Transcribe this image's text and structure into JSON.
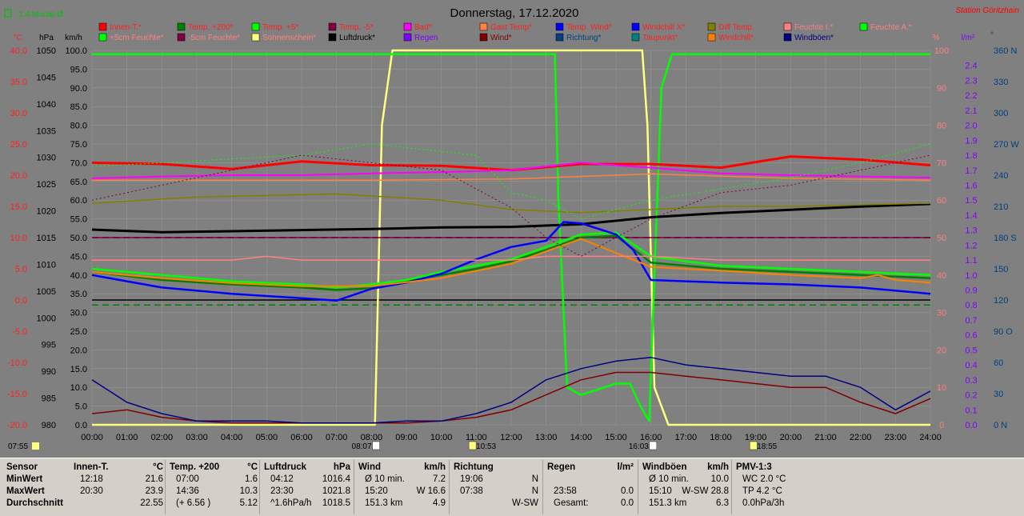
{
  "title": "Donnerstag, 17.12.2020",
  "station": "Station Göritzhain",
  "monat": "-1.4 Monat-Ø",
  "axis_units": {
    "temp": "°C",
    "pressure": "hPa",
    "wind": "km/h",
    "percent": "%",
    "rain": "l/m²",
    "direction": "°"
  },
  "legend": [
    {
      "label": "Innen-T.*",
      "color": "#ff0000",
      "text": "#ff2020"
    },
    {
      "label": "Temp. +200*",
      "color": "#008000",
      "text": "#ff2020"
    },
    {
      "label": "Temp. +5*",
      "color": "#00ff00",
      "text": "#ff2020"
    },
    {
      "label": "Temp. -5*",
      "color": "#800040",
      "text": "#ff2020"
    },
    {
      "label": "Bad*",
      "color": "#ff00ff",
      "text": "#ff2020"
    },
    {
      "label": "Gast Temp*",
      "color": "#ff8040",
      "text": "#ff2020"
    },
    {
      "label": "Temp. Wind*",
      "color": "#0000ff",
      "text": "#ff2020"
    },
    {
      "label": "Windchill X*",
      "color": "#0000ff",
      "text": "#ff2020"
    },
    {
      "label": "Diff Temp.",
      "color": "#808000",
      "text": "#ff2020"
    },
    {
      "label": "Feuchte I.*",
      "color": "#ff8080",
      "text": "#ff8080"
    },
    {
      "label": "Feuchte A.*",
      "color": "#00ff00",
      "text": "#ff8080"
    },
    {
      "label": "+5cm Feuchte*",
      "color": "#00ff00",
      "text": "#ff8080"
    },
    {
      "label": "-5cm Feuchte*",
      "color": "#800040",
      "text": "#ff8080"
    },
    {
      "label": "Sonnenschein*",
      "color": "#ffff80",
      "text": "#ff8080"
    },
    {
      "label": "Luftdruck*",
      "color": "#000000",
      "text": "#000000"
    },
    {
      "label": "Regen",
      "color": "#8000ff",
      "text": "#8000ff"
    },
    {
      "label": "Wind*",
      "color": "#800000",
      "text": "#800000"
    },
    {
      "label": "Richtung*",
      "color": "#004080",
      "text": "#004080"
    },
    {
      "label": "Taupunkt*",
      "color": "#008080",
      "text": "#ff2020"
    },
    {
      "label": "Windchill*",
      "color": "#ff8000",
      "text": "#ff2020"
    },
    {
      "label": "Windböen*",
      "color": "#000080",
      "text": "#000080"
    }
  ],
  "chart_data": {
    "type": "line",
    "x_unit": "hour",
    "x_ticks": [
      "00:00",
      "01:00",
      "02:00",
      "03:00",
      "04:00",
      "05:00",
      "06:00",
      "07:00",
      "08:00",
      "09:00",
      "10:00",
      "11:00",
      "12:00",
      "13:00",
      "14:00",
      "15:00",
      "16:00",
      "17:00",
      "18:00",
      "19:00",
      "20:00",
      "21:00",
      "22:00",
      "23:00",
      "24:00"
    ],
    "xlim": [
      0,
      24
    ],
    "axes": {
      "temp": {
        "ticks": [
          "40.0",
          "35.0",
          "30.0",
          "25.0",
          "20.0",
          "15.0",
          "10.0",
          "5.0",
          "0.0",
          "-5.0",
          "-10.0",
          "-15.0",
          "-20.0"
        ],
        "range": [
          -20,
          40
        ]
      },
      "pressure": {
        "ticks": [
          "1050",
          "1045",
          "1040",
          "1035",
          "1030",
          "1025",
          "1020",
          "1015",
          "1010",
          "1005",
          "1000",
          "995",
          "990",
          "985",
          "980"
        ],
        "range": [
          980,
          1050
        ]
      },
      "wind": {
        "ticks": [
          "100.0",
          "95.0",
          "90.0",
          "85.0",
          "80.0",
          "75.0",
          "70.0",
          "65.0",
          "60.0",
          "55.0",
          "50.0",
          "45.0",
          "40.0",
          "35.0",
          "30.0",
          "25.0",
          "20.0",
          "15.0",
          "10.0",
          "5.0",
          "0.0"
        ],
        "range": [
          0,
          100
        ]
      },
      "percent": {
        "ticks": [
          "100",
          "90",
          "80",
          "70",
          "60",
          "50",
          "40",
          "30",
          "20",
          "10",
          "0"
        ],
        "range": [
          0,
          100
        ]
      },
      "rain": {
        "ticks": [
          "2.4",
          "2.3",
          "2.2",
          "2.1",
          "2.0",
          "1.9",
          "1.8",
          "1.7",
          "1.6",
          "1.5",
          "1.4",
          "1.3",
          "1.2",
          "1.1",
          "1.0",
          "0.9",
          "0.8",
          "0.7",
          "0.6",
          "0.5",
          "0.4",
          "0.3",
          "0.2",
          "0.1",
          "0.0"
        ],
        "range": [
          0,
          2.5
        ]
      },
      "direction": {
        "ticks": [
          "360 N",
          "330",
          "300",
          "270 W",
          "240",
          "210",
          "180 S",
          "150",
          "120",
          "90 O",
          "60",
          "30",
          "0 N"
        ],
        "range": [
          0,
          360
        ]
      }
    },
    "series": [
      {
        "name": "Sonnenschein*",
        "axis": "percent",
        "color": "#ffff80",
        "x": [
          0,
          8.1,
          8.3,
          8.6,
          15.75,
          15.9,
          16.1,
          16.5,
          24
        ],
        "y": [
          0,
          0,
          80,
          100,
          100,
          80,
          10,
          0,
          0
        ]
      },
      {
        "name": "+5cm Feuchte*",
        "axis": "percent",
        "color": "#00ff00",
        "x": [
          0,
          13.25,
          13.35,
          13.6,
          14.0,
          15.0,
          15.4,
          15.7,
          15.95,
          16.1,
          16.3,
          16.6,
          17.0,
          24
        ],
        "y": [
          99,
          99,
          60,
          10,
          8,
          11,
          11,
          5,
          1,
          40,
          90,
          99,
          99,
          99
        ]
      },
      {
        "name": "Innen-T.*",
        "axis": "temp",
        "color": "#ff0000",
        "x": [
          0,
          2,
          4,
          6,
          8,
          10,
          12,
          14,
          16,
          18,
          20,
          22,
          24
        ],
        "y": [
          22.0,
          21.8,
          21.0,
          22.2,
          21.6,
          21.5,
          20.8,
          21.8,
          21.8,
          21.2,
          23.0,
          22.5,
          21.6
        ]
      },
      {
        "name": "Bad*",
        "axis": "temp",
        "color": "#ff00ff",
        "x": [
          0,
          2,
          4,
          6,
          8,
          10,
          12,
          14,
          16,
          18,
          20,
          22,
          24
        ],
        "y": [
          19.5,
          19.8,
          20.0,
          20.0,
          20.3,
          20.5,
          20.8,
          22.0,
          21.2,
          20.3,
          20.0,
          19.8,
          19.6
        ]
      },
      {
        "name": "Gast Temp*",
        "axis": "temp",
        "color": "#ff8040",
        "x": [
          0,
          4,
          8,
          12,
          16,
          20,
          24
        ],
        "y": [
          19.2,
          19.2,
          19.2,
          19.4,
          20.2,
          19.5,
          19.2
        ]
      },
      {
        "name": "Luftdruck*",
        "axis": "pressure",
        "color": "#000000",
        "x": [
          0,
          2,
          4,
          6,
          8,
          10,
          12,
          14,
          16,
          18,
          20,
          22,
          24
        ],
        "y": [
          1016.5,
          1016.0,
          1016.2,
          1016.4,
          1016.6,
          1016.9,
          1017.0,
          1017.5,
          1018.8,
          1019.6,
          1020.2,
          1020.8,
          1021.3
        ]
      },
      {
        "name": "Temp. -5*",
        "axis": "temp",
        "color": "#800040",
        "x": [
          0,
          24
        ],
        "y": [
          10.0,
          10.0
        ]
      },
      {
        "name": "Temp. +200*",
        "axis": "temp",
        "color": "#008000",
        "x": [
          0,
          2,
          4,
          6,
          7,
          8,
          9,
          10,
          11,
          12,
          13,
          14,
          15,
          16,
          17,
          18,
          20,
          22,
          24
        ],
        "y": [
          4.5,
          3.2,
          2.5,
          2.0,
          1.6,
          1.9,
          3.0,
          4.0,
          5.0,
          6.2,
          8.0,
          10.0,
          10.3,
          6.0,
          5.5,
          5.0,
          4.5,
          4.0,
          3.5
        ]
      },
      {
        "name": "Temp. +5*",
        "axis": "temp",
        "color": "#00ff00",
        "x": [
          0,
          2,
          4,
          6,
          7,
          8,
          9,
          10,
          11,
          12,
          13,
          14,
          15,
          16,
          17,
          18,
          20,
          22,
          24
        ],
        "y": [
          5.0,
          4.0,
          3.0,
          2.5,
          2.0,
          2.5,
          3.2,
          4.5,
          5.5,
          6.5,
          8.5,
          10.5,
          10.8,
          7.0,
          6.2,
          5.5,
          5.0,
          4.5,
          4.0
        ]
      },
      {
        "name": "Temp. Wind*",
        "axis": "temp",
        "color": "#0000ff",
        "x": [
          0,
          1,
          2,
          4,
          6,
          7,
          8,
          9,
          10,
          11,
          12,
          13,
          13.5,
          14,
          15,
          15.5,
          16,
          17,
          18,
          20,
          22,
          24
        ],
        "y": [
          4.0,
          3.0,
          2.0,
          1.0,
          0.3,
          -0.1,
          1.8,
          2.8,
          4.2,
          6.5,
          8.5,
          9.5,
          12.5,
          12.3,
          10.5,
          8.0,
          3.2,
          3.0,
          2.8,
          2.5,
          2.0,
          1.0
        ]
      },
      {
        "name": "Windchill*",
        "axis": "temp",
        "color": "#ff8000",
        "x": [
          0,
          2,
          4,
          6,
          8,
          10,
          12,
          14,
          16,
          18,
          20,
          22,
          22.5,
          23,
          24
        ],
        "y": [
          4.5,
          3.5,
          2.7,
          2.2,
          2.2,
          3.5,
          5.8,
          9.8,
          5.3,
          4.7,
          4.0,
          3.5,
          4.0,
          3.2,
          2.8
        ]
      },
      {
        "name": "Diff Temp.",
        "axis": "temp",
        "color": "#808000",
        "x": [
          0,
          3,
          7,
          10,
          12,
          14,
          16,
          18,
          20,
          24
        ],
        "y": [
          15.5,
          16.5,
          17.0,
          16.0,
          14.5,
          14.0,
          14.5,
          15.0,
          15.0,
          15.5
        ]
      },
      {
        "name": "Feuchte I.*",
        "axis": "percent",
        "color": "#ff8080",
        "x": [
          0,
          2,
          4,
          5,
          6,
          8,
          12,
          13,
          14,
          16,
          18,
          20,
          22,
          24
        ],
        "y": [
          44,
          44,
          44,
          45,
          44,
          44,
          44,
          45,
          45,
          45,
          44,
          44,
          44,
          44
        ]
      },
      {
        "name": "Feuchte A.*",
        "axis": "percent",
        "color": "#00ff00",
        "dashed": true,
        "x": [
          0,
          2,
          4,
          6,
          8,
          9,
          11,
          12,
          13,
          14,
          16,
          18,
          20,
          22,
          24
        ],
        "y": [
          69,
          70,
          71,
          72,
          75,
          74,
          72,
          62,
          60,
          55,
          60,
          63,
          66,
          70,
          75
        ]
      },
      {
        "name": "-5cm Feuchte*",
        "axis": "percent",
        "color": "#800040",
        "dashed": true,
        "x": [
          0,
          2,
          4,
          6,
          8,
          10,
          12,
          13,
          14,
          16,
          18,
          20,
          22,
          24
        ],
        "y": [
          60,
          64,
          68,
          72,
          70,
          68,
          58,
          50,
          45,
          55,
          62,
          64,
          68,
          72
        ]
      },
      {
        "name": "Wind*",
        "axis": "wind",
        "color": "#800000",
        "x": [
          0,
          1,
          2,
          3,
          4,
          5,
          6,
          7,
          8,
          9,
          10,
          11,
          12,
          13,
          14,
          15,
          16,
          17,
          18,
          19,
          20,
          21,
          22,
          23,
          24
        ],
        "y": [
          3,
          4,
          2,
          1,
          0.5,
          0.5,
          0.5,
          0.5,
          0.5,
          0.5,
          1,
          2,
          4,
          8,
          12,
          14,
          14,
          13,
          12,
          11,
          10,
          10,
          6,
          3,
          7
        ]
      },
      {
        "name": "Windböen*",
        "axis": "wind",
        "color": "#000080",
        "x": [
          0,
          1,
          2,
          3,
          4,
          5,
          6,
          7,
          8,
          9,
          10,
          11,
          12,
          13,
          14,
          15,
          16,
          17,
          18,
          19,
          20,
          21,
          22,
          23,
          24
        ],
        "y": [
          12,
          6,
          3,
          1,
          1,
          1,
          0.5,
          0.5,
          0.5,
          1,
          1,
          3,
          6,
          12,
          15,
          17,
          18,
          16,
          15,
          14,
          13,
          13,
          10,
          4,
          9
        ]
      }
    ],
    "reference_lines": [
      {
        "axis": "temp",
        "y": 0,
        "color": "#000000"
      },
      {
        "axis": "pressure",
        "y": 1015,
        "color": "#000000",
        "dashed": true
      },
      {
        "axis": "temp",
        "y": -0.8,
        "color": "#008000",
        "dashed": true
      }
    ],
    "sun_events": [
      {
        "label": "08:07",
        "hour": 8.12
      },
      {
        "label": "10:53",
        "hour": 10.88
      },
      {
        "label": "16:03",
        "hour": 16.05
      },
      {
        "label": "18:55",
        "hour": 18.92
      }
    ],
    "left_time": "07:55"
  },
  "stats": {
    "row_labels": [
      "Sensor",
      "MinWert",
      "MaxWert",
      "Durchschnitt"
    ],
    "columns": [
      {
        "name": "Innen-T.",
        "unit": "°C",
        "rows": [
          [
            "12:18",
            "21.6"
          ],
          [
            "20:30",
            "23.9"
          ],
          [
            "",
            "22.55"
          ]
        ]
      },
      {
        "name": "Temp. +200",
        "unit": "°C",
        "rows": [
          [
            "07:00",
            "1.6"
          ],
          [
            "14:36",
            "10.3"
          ],
          [
            "(+ 6.56 )",
            "5.12"
          ]
        ]
      },
      {
        "name": "Luftdruck",
        "unit": "hPa",
        "rows": [
          [
            "04:12",
            "1016.4"
          ],
          [
            "23:30",
            "1021.8"
          ],
          [
            "^1.6hPa/h",
            "1018.5"
          ]
        ]
      },
      {
        "name": "Wind",
        "unit": "km/h",
        "rows": [
          [
            "Ø 10 min.",
            "7.2"
          ],
          [
            "15:20",
            "W 16.6"
          ],
          [
            "151.3 km",
            "4.9"
          ]
        ]
      },
      {
        "name": "Richtung",
        "unit": "",
        "rows": [
          [
            "19:06",
            "N"
          ],
          [
            "07:38",
            "N"
          ],
          [
            "",
            "W-SW"
          ]
        ]
      },
      {
        "name": "Regen",
        "unit": "l/m²",
        "rows": [
          [
            "",
            ""
          ],
          [
            "23:58",
            "0.0"
          ],
          [
            "Gesamt:",
            "0.0"
          ]
        ]
      },
      {
        "name": "Windböen",
        "unit": "km/h",
        "rows": [
          [
            "Ø 10 min.",
            "10.0"
          ],
          [
            "15:10",
            "W-SW 28.8"
          ],
          [
            "151.3 km",
            "6.3"
          ]
        ]
      },
      {
        "name": "PMV-1:3",
        "unit": "",
        "rows": [
          [
            "WC 2.0 °C",
            ""
          ],
          [
            "TP 4.2 °C",
            ""
          ],
          [
            "0.0hPa/3h",
            ""
          ]
        ]
      }
    ]
  }
}
